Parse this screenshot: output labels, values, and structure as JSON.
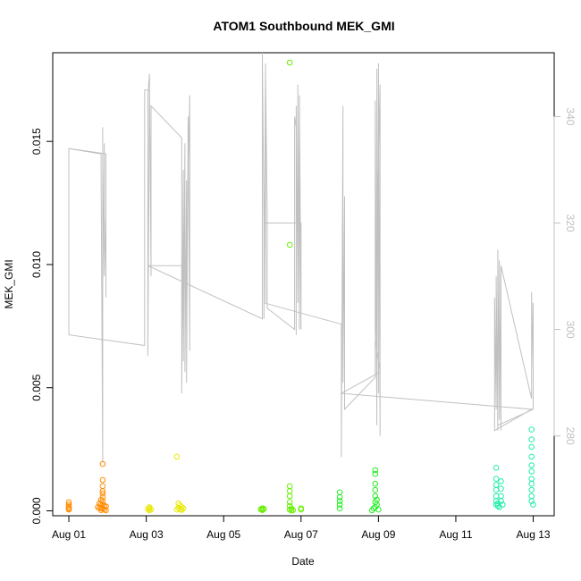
{
  "chart_data": {
    "type": "scatter",
    "title": "ATOM1 Southbound MEK_GMI",
    "xlabel": "Date",
    "ylabel": "MEK_GMI",
    "x_unit": "date",
    "xlim": [
      "2023-07-31T14:00",
      "2023-08-13T13:00"
    ],
    "ylim": [
      -0.0002,
      0.0186
    ],
    "x_ticks": [
      "Aug 01",
      "Aug 03",
      "Aug 05",
      "Aug 07",
      "Aug 09",
      "Aug 11",
      "Aug 13"
    ],
    "y_ticks": [
      "0.000",
      "0.005",
      "0.010",
      "0.015"
    ],
    "y2_ticks": [
      "280",
      "300",
      "320",
      "340"
    ],
    "y2lim": [
      265,
      352
    ],
    "grid": false,
    "colors": {
      "axis": "#000000",
      "secondary_line": "#c0c0c0"
    },
    "point_groups": [
      {
        "color": "#ff8c00",
        "points": [
          [
            "2023-08-01T00:00",
            0.00035
          ],
          [
            "2023-08-01T00:00",
            0.00025
          ],
          [
            "2023-08-01T00:00",
            0.00018
          ],
          [
            "2023-08-01T00:00",
            0.00012
          ],
          [
            "2023-08-01T00:00",
            8e-05
          ],
          [
            "2023-08-01T00:00",
            5e-05
          ],
          [
            "2023-08-01T21:00",
            0.0019
          ],
          [
            "2023-08-01T21:00",
            0.00125
          ],
          [
            "2023-08-01T21:00",
            0.001
          ],
          [
            "2023-08-01T21:00",
            0.0007
          ],
          [
            "2023-08-01T21:00",
            0.00055
          ],
          [
            "2023-08-01T21:00",
            0.0004
          ],
          [
            "2023-08-01T19:00",
            0.0003
          ],
          [
            "2023-08-01T20:00",
            0.00028
          ],
          [
            "2023-08-01T21:00",
            0.00025
          ],
          [
            "2023-08-01T22:00",
            0.0002
          ],
          [
            "2023-08-01T23:00",
            0.00018
          ],
          [
            "2023-08-01T18:00",
            0.00015
          ],
          [
            "2023-08-01T19:00",
            0.00012
          ],
          [
            "2023-08-01T20:00",
            0.0001
          ],
          [
            "2023-08-01T21:00",
            8e-05
          ],
          [
            "2023-08-01T22:00",
            5e-05
          ],
          [
            "2023-08-01T20:00",
            3e-05
          ],
          [
            "2023-08-01T23:00",
            2e-05
          ],
          [
            "2023-08-01T21:00",
            0.0008
          ],
          [
            "2023-08-01T20:00",
            0.00045
          ]
        ]
      },
      {
        "color": "#e8e800",
        "points": [
          [
            "2023-08-03T02:00",
            0.00015
          ],
          [
            "2023-08-03T02:00",
            0.0001
          ],
          [
            "2023-08-03T03:00",
            5e-05
          ],
          [
            "2023-08-03T01:00",
            8e-05
          ],
          [
            "2023-08-03T02:00",
            2e-05
          ],
          [
            "2023-08-03T19:00",
            0.0022
          ],
          [
            "2023-08-03T20:00",
            0.0003
          ],
          [
            "2023-08-03T21:00",
            0.00022
          ],
          [
            "2023-08-03T22:00",
            0.00015
          ],
          [
            "2023-08-03T23:00",
            0.0001
          ],
          [
            "2023-08-03T20:00",
            0.00012
          ],
          [
            "2023-08-03T21:00",
            6e-05
          ],
          [
            "2023-08-03T22:00",
            4e-05
          ],
          [
            "2023-08-03T19:00",
            5e-05
          ]
        ]
      },
      {
        "color": "#66ee00",
        "points": [
          [
            "2023-08-06T00:00",
            0.0001
          ],
          [
            "2023-08-06T00:00",
            5e-05
          ],
          [
            "2023-08-06T00:00",
            3e-05
          ],
          [
            "2023-08-06T01:00",
            8e-05
          ],
          [
            "2023-08-05T23:00",
            6e-05
          ],
          [
            "2023-08-06T17:00",
            0.0182
          ],
          [
            "2023-08-06T17:00",
            0.0108
          ],
          [
            "2023-08-06T17:00",
            0.001
          ],
          [
            "2023-08-06T17:00",
            0.0008
          ],
          [
            "2023-08-06T17:00",
            0.0006
          ],
          [
            "2023-08-06T17:00",
            0.00035
          ],
          [
            "2023-08-06T17:00",
            0.0002
          ],
          [
            "2023-08-06T18:00",
            0.0001
          ],
          [
            "2023-08-06T17:00",
            5e-05
          ],
          [
            "2023-08-06T19:00",
            3e-05
          ],
          [
            "2023-08-06T18:00",
            1e-05
          ],
          [
            "2023-08-07T00:00",
            0.0001
          ],
          [
            "2023-08-07T00:00",
            5e-05
          ]
        ]
      },
      {
        "color": "#22ee22",
        "points": [
          [
            "2023-08-08T00:00",
            0.00075
          ],
          [
            "2023-08-08T00:00",
            0.00055
          ],
          [
            "2023-08-08T00:00",
            0.0004
          ],
          [
            "2023-08-08T00:00",
            0.00025
          ],
          [
            "2023-08-08T00:00",
            0.0001
          ],
          [
            "2023-08-08T22:00",
            0.00165
          ],
          [
            "2023-08-08T22:00",
            0.0015
          ],
          [
            "2023-08-08T22:00",
            0.0011
          ],
          [
            "2023-08-08T22:00",
            0.00085
          ],
          [
            "2023-08-08T22:00",
            0.0006
          ],
          [
            "2023-08-08T23:00",
            0.00045
          ],
          [
            "2023-08-08T22:00",
            0.00035
          ],
          [
            "2023-08-08T23:00",
            0.00025
          ],
          [
            "2023-08-08T22:00",
            0.00015
          ],
          [
            "2023-08-08T21:00",
            0.0001
          ],
          [
            "2023-08-09T00:00",
            5e-05
          ],
          [
            "2023-08-08T20:00",
            2e-05
          ]
        ]
      },
      {
        "color": "#22eeaa",
        "points": [
          [
            "2023-08-12T01:00",
            0.00175
          ],
          [
            "2023-08-12T01:00",
            0.0013
          ],
          [
            "2023-08-12T01:00",
            0.00105
          ],
          [
            "2023-08-12T01:00",
            0.00085
          ],
          [
            "2023-08-12T01:00",
            0.0006
          ],
          [
            "2023-08-12T01:00",
            0.0004
          ],
          [
            "2023-08-12T02:00",
            0.0003
          ],
          [
            "2023-08-12T02:00",
            0.0002
          ],
          [
            "2023-08-12T03:00",
            0.00015
          ],
          [
            "2023-08-12T01:00",
            0.00025
          ],
          [
            "2023-08-12T04:00",
            0.0012
          ],
          [
            "2023-08-12T04:00",
            0.0009
          ],
          [
            "2023-08-12T04:00",
            0.0006
          ],
          [
            "2023-08-12T04:00",
            0.0004
          ],
          [
            "2023-08-12T05:00",
            0.00025
          ],
          [
            "2023-08-12T23:00",
            0.0033
          ],
          [
            "2023-08-12T23:00",
            0.0029
          ],
          [
            "2023-08-12T23:00",
            0.0026
          ],
          [
            "2023-08-12T23:00",
            0.0022
          ],
          [
            "2023-08-12T23:00",
            0.00185
          ],
          [
            "2023-08-12T23:00",
            0.0016
          ],
          [
            "2023-08-12T23:00",
            0.0013
          ],
          [
            "2023-08-12T23:00",
            0.0011
          ],
          [
            "2023-08-12T23:00",
            0.00085
          ],
          [
            "2023-08-12T23:00",
            0.0006
          ],
          [
            "2023-08-12T23:00",
            0.0004
          ],
          [
            "2023-08-13T00:00",
            0.00025
          ]
        ]
      }
    ],
    "secondary_series": {
      "color": "#c0c0c0",
      "y2_axis": true,
      "points": [
        [
          "2023-08-01T00:00",
          321
        ],
        [
          "2023-08-01T00:00",
          334
        ],
        [
          "2023-08-01T20:00",
          333
        ],
        [
          "2023-08-01T20:00",
          330
        ],
        [
          "2023-08-01T21:00",
          275
        ],
        [
          "2023-08-01T21:00",
          290
        ],
        [
          "2023-08-01T21:00",
          338
        ],
        [
          "2023-08-01T21:00",
          308
        ],
        [
          "2023-08-01T22:00",
          335
        ],
        [
          "2023-08-01T22:00",
          310
        ],
        [
          "2023-08-01T23:00",
          322
        ],
        [
          "2023-08-01T23:00",
          333
        ],
        [
          "2023-08-01T23:00",
          306
        ],
        [
          "2023-08-01T23:00",
          333
        ],
        [
          "2023-08-01T00:00",
          334
        ],
        [
          "2023-08-01T00:00",
          299
        ],
        [
          "2023-08-02T23:00",
          297
        ],
        [
          "2023-08-02T23:00",
          345
        ],
        [
          "2023-08-03T02:00",
          345
        ],
        [
          "2023-08-03T01:00",
          295
        ],
        [
          "2023-08-03T01:00",
          344
        ],
        [
          "2023-08-03T02:00",
          348
        ],
        [
          "2023-08-03T03:00",
          310
        ],
        [
          "2023-08-03T03:00",
          342
        ],
        [
          "2023-08-03T22:00",
          336
        ],
        [
          "2023-08-03T22:00",
          288
        ],
        [
          "2023-08-03T23:00",
          330
        ],
        [
          "2023-08-03T23:00",
          294
        ],
        [
          "2023-08-04T00:00",
          335
        ],
        [
          "2023-08-04T00:00",
          292
        ],
        [
          "2023-08-04T01:00",
          328
        ],
        [
          "2023-08-04T01:00",
          290
        ],
        [
          "2023-08-04T02:00",
          340
        ],
        [
          "2023-08-04T03:00",
          296
        ],
        [
          "2023-08-04T03:00",
          344
        ],
        [
          "2023-08-04T01:00",
          312
        ],
        [
          "2023-08-03T01:00",
          312
        ],
        [
          "2023-08-06T00:00",
          302
        ],
        [
          "2023-08-06T00:00",
          352
        ],
        [
          "2023-08-06T01:00",
          320
        ],
        [
          "2023-08-06T01:00",
          302
        ],
        [
          "2023-08-06T02:00",
          350
        ],
        [
          "2023-08-06T02:00",
          305
        ],
        [
          "2023-08-06T02:00",
          348
        ],
        [
          "2023-08-06T03:00",
          322
        ],
        [
          "2023-08-06T03:00",
          304
        ],
        [
          "2023-08-06T20:00",
          300
        ],
        [
          "2023-08-06T20:00",
          340
        ],
        [
          "2023-08-06T21:00",
          338
        ],
        [
          "2023-08-06T21:00",
          299
        ],
        [
          "2023-08-06T21:00",
          342
        ],
        [
          "2023-08-06T22:00",
          305
        ],
        [
          "2023-08-06T22:00",
          346
        ],
        [
          "2023-08-06T23:00",
          300
        ],
        [
          "2023-08-06T23:00",
          344
        ],
        [
          "2023-08-06T23:00",
          302
        ],
        [
          "2023-08-06T23:00",
          344
        ],
        [
          "2023-08-07T00:00",
          300
        ],
        [
          "2023-08-07T00:00",
          320
        ],
        [
          "2023-08-06T01:00",
          320
        ],
        [
          "2023-08-06T01:00",
          305
        ],
        [
          "2023-08-08T01:00",
          301
        ],
        [
          "2023-08-08T01:00",
          276
        ],
        [
          "2023-08-08T02:00",
          342
        ],
        [
          "2023-08-08T02:00",
          290
        ],
        [
          "2023-08-08T03:00",
          325
        ],
        [
          "2023-08-08T03:00",
          285
        ],
        [
          "2023-08-08T22:00",
          291
        ],
        [
          "2023-08-08T22:00",
          343
        ],
        [
          "2023-08-08T23:00",
          282
        ],
        [
          "2023-08-08T23:00",
          349
        ],
        [
          "2023-08-09T00:00",
          288
        ],
        [
          "2023-08-09T00:00",
          350
        ],
        [
          "2023-08-09T01:00",
          280
        ],
        [
          "2023-08-09T01:00",
          346
        ],
        [
          "2023-08-08T22:00",
          298
        ],
        [
          "2023-08-09T01:00",
          292
        ],
        [
          "2023-08-08T01:00",
          288
        ],
        [
          "2023-08-12T23:00",
          285
        ],
        [
          "2023-08-12T00:00",
          281
        ],
        [
          "2023-08-12T00:00",
          306
        ],
        [
          "2023-08-12T01:00",
          285
        ],
        [
          "2023-08-12T01:00",
          310
        ],
        [
          "2023-08-12T02:00",
          281
        ],
        [
          "2023-08-12T02:00",
          315
        ],
        [
          "2023-08-12T03:00",
          283
        ],
        [
          "2023-08-12T03:00",
          313
        ],
        [
          "2023-08-12T04:00",
          281
        ],
        [
          "2023-08-12T04:00",
          312
        ],
        [
          "2023-08-12T23:00",
          287
        ],
        [
          "2023-08-12T23:00",
          307
        ],
        [
          "2023-08-13T00:00",
          292
        ],
        [
          "2023-08-13T00:00",
          305
        ],
        [
          "2023-08-13T00:00",
          289
        ],
        [
          "2023-08-13T00:00",
          285
        ],
        [
          "2023-08-12T02:00",
          282
        ]
      ]
    }
  }
}
